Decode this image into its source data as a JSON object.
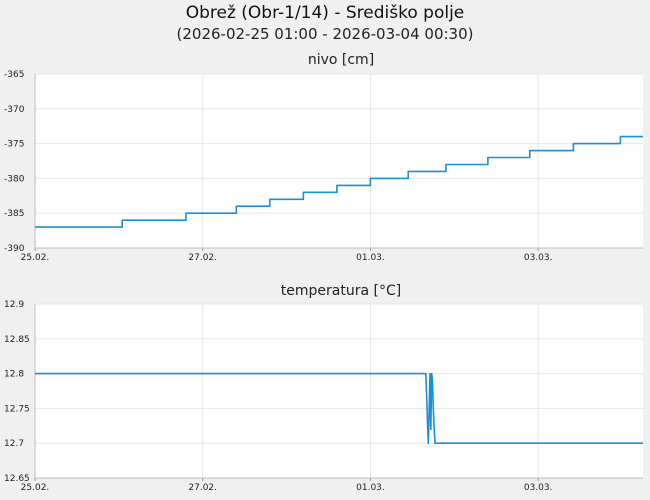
{
  "header": {
    "title": "Obrež (Obr-1/14) - Središko polje",
    "subtitle": "(2026-02-25 01:00 - 2026-03-04 00:30)"
  },
  "colors": {
    "series": "#1a8fd8",
    "grid": "#e6e6e6",
    "background": "#ffffff",
    "page": "#f0f0f0"
  },
  "chart_data": [
    {
      "type": "line",
      "title": "nivo [cm]",
      "xlabel": "",
      "ylabel": "",
      "x_ticks": [
        "25.02.",
        "27.02.",
        "01.03.",
        "03.03."
      ],
      "x_tick_days": [
        0,
        2,
        4,
        6
      ],
      "xlim_days": [
        0,
        7.25
      ],
      "y_ticks": [
        "-365",
        "-370",
        "-375",
        "-380",
        "-385",
        "-390"
      ],
      "ylim": [
        -390,
        -365
      ],
      "grid": true,
      "series": [
        {
          "x_days": [
            0,
            1.04,
            1.04,
            1.8,
            1.8,
            2.4,
            2.4,
            2.8,
            2.8,
            3.2,
            3.2,
            3.6,
            3.6,
            4.0,
            4.0,
            4.45,
            4.45,
            4.9,
            4.9,
            5.4,
            5.4,
            5.9,
            5.9,
            6.42,
            6.42,
            6.98,
            6.98,
            7.25
          ],
          "values": [
            -387,
            -387,
            -386,
            -386,
            -385,
            -385,
            -384,
            -384,
            -383,
            -383,
            -382,
            -382,
            -381,
            -381,
            -380,
            -380,
            -379,
            -379,
            -378,
            -378,
            -377,
            -377,
            -376,
            -376,
            -375,
            -375,
            -374,
            -374
          ]
        }
      ]
    },
    {
      "type": "line",
      "title": "temperatura [°C]",
      "xlabel": "",
      "ylabel": "",
      "x_ticks": [
        "25.02.",
        "27.02.",
        "01.03.",
        "03.03."
      ],
      "x_tick_days": [
        0,
        2,
        4,
        6
      ],
      "xlim_days": [
        0,
        7.25
      ],
      "y_ticks": [
        "12.9",
        "12.85",
        "12.8",
        "12.75",
        "12.7",
        "12.65"
      ],
      "ylim": [
        12.65,
        12.9
      ],
      "grid": true,
      "series": [
        {
          "x_days": [
            0,
            4.66,
            4.67,
            4.68,
            4.69,
            4.7,
            4.71,
            4.72,
            4.73,
            4.74,
            4.75,
            4.76,
            4.77,
            4.78,
            4.8,
            7.25
          ],
          "values": [
            12.8,
            12.8,
            12.77,
            12.73,
            12.7,
            12.75,
            12.8,
            12.72,
            12.8,
            12.79,
            12.75,
            12.72,
            12.7,
            12.7,
            12.7,
            12.7
          ]
        }
      ]
    }
  ]
}
